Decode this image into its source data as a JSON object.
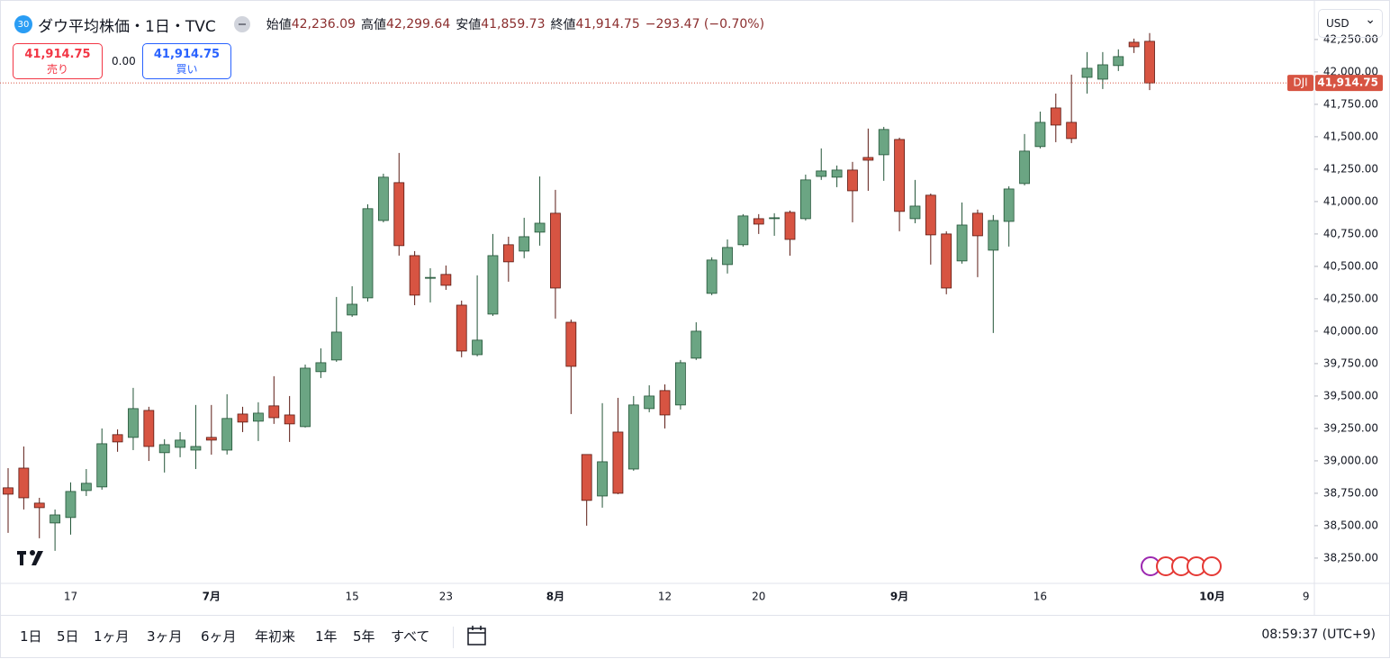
{
  "header": {
    "badge": "30",
    "symbol": "ダウ平均株価・1日・TVC",
    "ohlc": [
      {
        "label": "始値",
        "value": "42,236.09"
      },
      {
        "label": "高値",
        "value": "42,299.64"
      },
      {
        "label": "安値",
        "value": "41,859.73"
      },
      {
        "label": "終値",
        "value": "41,914.75"
      }
    ],
    "change": "−293.47 (−0.70%)"
  },
  "trade": {
    "sell_price": "41,914.75",
    "sell_label": "売り",
    "spread": "0.00",
    "buy_price": "41,914.75",
    "buy_label": "買い"
  },
  "currency": "USD",
  "chart_data": {
    "type": "candlestick",
    "categories": [
      null,
      null,
      null,
      null,
      "17",
      null,
      null,
      null,
      null,
      null,
      null,
      null,
      null,
      "7月",
      null,
      null,
      null,
      null,
      null,
      null,
      null,
      null,
      "15",
      null,
      null,
      null,
      null,
      null,
      "23",
      null,
      null,
      null,
      null,
      null,
      null,
      "8月",
      null,
      null,
      null,
      null,
      null,
      null,
      "12",
      null,
      null,
      null,
      null,
      null,
      "20",
      null,
      null,
      null,
      null,
      null,
      null,
      null,
      null,
      "9月",
      null,
      null,
      null,
      null,
      null,
      null,
      null,
      null,
      "16",
      null,
      null,
      null,
      null,
      null,
      null,
      null,
      null,
      null,
      null,
      "10月",
      null,
      null,
      null,
      null,
      null,
      "9"
    ],
    "open": [
      38792,
      38944,
      38674,
      38521,
      38563,
      38771,
      38799,
      39202,
      39181,
      39389,
      39063,
      39104,
      39083,
      39181,
      39083,
      39361,
      39306,
      39424,
      39354,
      39264,
      39688,
      39778,
      40125,
      40257,
      40854,
      41146,
      40583,
      40410,
      40438,
      40201,
      39819,
      40132,
      40667,
      40618,
      40764,
      40910,
      40069,
      39049,
      38729,
      39222,
      38937,
      39403,
      39542,
      39431,
      39792,
      40292,
      40514,
      40667,
      40868,
      40872,
      40917,
      40868,
      41194,
      41188,
      41243,
      41340,
      41361,
      41479,
      40868,
      41049,
      40750,
      40542,
      40910,
      40625,
      40847,
      41139,
      41424,
      41722,
      41611,
      41958,
      41944,
      42049,
      42229,
      42236.09,
      null,
      null,
      null,
      null,
      null,
      null,
      null,
      null,
      null,
      null
    ],
    "high": [
      38944,
      39111,
      38715,
      38625,
      38834,
      38937,
      39250,
      39243,
      39563,
      39417,
      39167,
      39222,
      39431,
      39431,
      39514,
      39417,
      39452,
      39653,
      39500,
      39743,
      39868,
      40264,
      40347,
      40979,
      41215,
      41375,
      40618,
      40486,
      40507,
      40236,
      40431,
      40750,
      40729,
      40875,
      41194,
      41090,
      40090,
      39049,
      39445,
      39486,
      39500,
      39583,
      39590,
      39778,
      40069,
      40570,
      40708,
      40903,
      40903,
      40910,
      40931,
      41208,
      41410,
      41278,
      41306,
      41563,
      41576,
      41493,
      41167,
      41062,
      40771,
      40993,
      40938,
      40896,
      41118,
      41521,
      41694,
      41833,
      41979,
      42153,
      42153,
      42174,
      42257,
      42299.64,
      null,
      null,
      null,
      null,
      null,
      null,
      null,
      null,
      null,
      null
    ],
    "low": [
      38445,
      38625,
      38403,
      38306,
      38431,
      38729,
      38778,
      39070,
      39083,
      38999,
      38910,
      39028,
      38937,
      39048,
      39049,
      39222,
      39153,
      39285,
      39146,
      39257,
      39639,
      39764,
      40111,
      40229,
      40840,
      40583,
      40201,
      40222,
      40319,
      39799,
      39806,
      40118,
      40382,
      40563,
      40660,
      40097,
      39361,
      38500,
      38639,
      38743,
      38924,
      39375,
      39250,
      39396,
      39778,
      40278,
      40445,
      40653,
      40750,
      40736,
      40583,
      40854,
      41167,
      41111,
      40840,
      41083,
      41160,
      40771,
      40833,
      40514,
      40285,
      40521,
      40417,
      39986,
      40653,
      41125,
      41410,
      41458,
      41451,
      41833,
      41868,
      42007,
      42146,
      41859.73,
      null,
      null,
      null,
      null,
      null,
      null,
      null,
      null,
      null,
      null
    ],
    "close": [
      38743,
      38715,
      38639,
      38583,
      38764,
      38827,
      39132,
      39146,
      39403,
      39111,
      39125,
      39160,
      39111,
      39160,
      39327,
      39299,
      39368,
      39333,
      39285,
      39715,
      39757,
      39993,
      40208,
      40945,
      41188,
      40660,
      40278,
      40415,
      40354,
      39847,
      39931,
      40583,
      40535,
      40729,
      40833,
      40333,
      39729,
      38695,
      38993,
      38750,
      39431,
      39500,
      39354,
      39757,
      40000,
      40549,
      40646,
      40889,
      40826,
      40875,
      40708,
      41167,
      41236,
      41243,
      41083,
      41319,
      41556,
      40924,
      40965,
      40743,
      40333,
      40819,
      40736,
      40854,
      41097,
      41389,
      41611,
      41590,
      41486,
      42028,
      42055,
      42118,
      42194,
      41914.75,
      null,
      null,
      null,
      null,
      null,
      null,
      null,
      null,
      null,
      null
    ],
    "up_color": "#6ba583",
    "up_border": "#225437",
    "down_color": "#d75442",
    "down_border": "#5b1a13",
    "ylim": [
      38055,
      42520
    ],
    "yticks": [
      {
        "value": 38250,
        "label": "38,250.00"
      },
      {
        "value": 38500,
        "label": "38,500.00"
      },
      {
        "value": 38750,
        "label": "38,750.00"
      },
      {
        "value": 39000,
        "label": "39,000.00"
      },
      {
        "value": 39250,
        "label": "39,250.00"
      },
      {
        "value": 39500,
        "label": "39,500.00"
      },
      {
        "value": 39750,
        "label": "39,750.00"
      },
      {
        "value": 40000,
        "label": "40,000.00"
      },
      {
        "value": 40250,
        "label": "40,250.00"
      },
      {
        "value": 40500,
        "label": "40,500.00"
      },
      {
        "value": 40750,
        "label": "40,750.00"
      },
      {
        "value": 41000,
        "label": "41,000.00"
      },
      {
        "value": 41250,
        "label": "41,250.00"
      },
      {
        "value": 41500,
        "label": "41,500.00"
      },
      {
        "value": 41750,
        "label": "41,750.00"
      },
      {
        "value": 42000,
        "label": "42,000.00"
      },
      {
        "value": 42250,
        "label": "42,250.00"
      }
    ],
    "last_price": {
      "symbol": "DJI",
      "value": 41914.75,
      "label": "41,914.75"
    }
  },
  "toolbar": {
    "ranges": [
      "1日",
      "5日",
      "1ヶ月",
      "3ヶ月",
      "6ヶ月",
      "年初来",
      "1年",
      "5年",
      "すべて"
    ],
    "clock": "08:59:37 (UTC+9)"
  }
}
